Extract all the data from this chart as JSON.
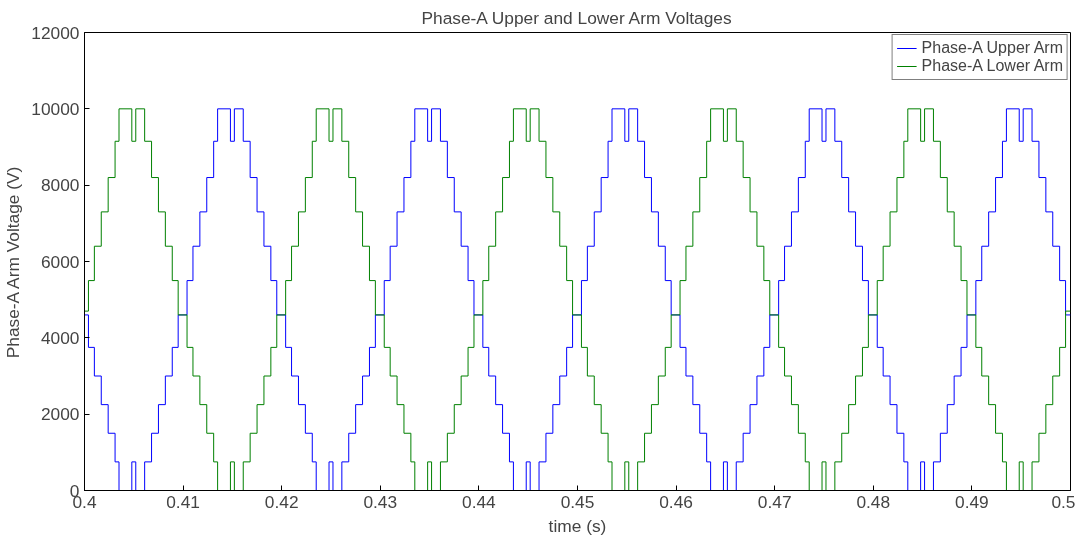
{
  "chart_data": {
    "type": "step",
    "title": "Phase-A Upper and Lower Arm Voltages",
    "xlabel": "time (s)",
    "ylabel": "Phase-A Arm Voltage (V)",
    "x": [
      0.4,
      0.4004,
      0.401,
      0.4017,
      0.4024,
      0.4031,
      0.4035,
      0.4048,
      0.4052,
      0.4061,
      0.4068,
      0.4075,
      0.4082,
      0.4089,
      0.4095,
      0.4104,
      0.411,
      0.4117,
      0.4124,
      0.4131,
      0.4135,
      0.4148,
      0.4152,
      0.4161,
      0.4168,
      0.4175,
      0.4182,
      0.4189,
      0.4195,
      0.4204,
      0.421,
      0.4217,
      0.4224,
      0.4231,
      0.4235,
      0.4248,
      0.4252,
      0.4261,
      0.4268,
      0.4275,
      0.4282,
      0.4289,
      0.4295,
      0.4304,
      0.431,
      0.4317,
      0.4324,
      0.4331,
      0.4335,
      0.4348,
      0.4352,
      0.4361,
      0.4368,
      0.4375,
      0.4382,
      0.4389,
      0.4395,
      0.4404,
      0.441,
      0.4417,
      0.4424,
      0.4431,
      0.4435,
      0.4448,
      0.4452,
      0.4461,
      0.4468,
      0.4475,
      0.4482,
      0.4489,
      0.4495,
      0.4504,
      0.451,
      0.4517,
      0.4524,
      0.4531,
      0.4535,
      0.4548,
      0.4552,
      0.4561,
      0.4568,
      0.4575,
      0.4582,
      0.4589,
      0.4595,
      0.4604,
      0.461,
      0.4617,
      0.4624,
      0.4631,
      0.4635,
      0.4648,
      0.4652,
      0.4661,
      0.4668,
      0.4675,
      0.4682,
      0.4689,
      0.4695,
      0.4704,
      0.471,
      0.4717,
      0.4724,
      0.4731,
      0.4735,
      0.4748,
      0.4752,
      0.4761,
      0.4768,
      0.4775,
      0.4782,
      0.4789,
      0.4795,
      0.4804,
      0.481,
      0.4817,
      0.4824,
      0.4831,
      0.4835,
      0.4848,
      0.4852,
      0.4861,
      0.4868,
      0.4875,
      0.4882,
      0.4889,
      0.4895,
      0.4904,
      0.491,
      0.4917,
      0.4924,
      0.4931,
      0.4935,
      0.4948,
      0.4952,
      0.4961,
      0.4968,
      0.4975,
      0.4982,
      0.4989,
      0.4995,
      0.5
    ],
    "series": [
      {
        "name": "Phase-A Upper Arm",
        "color": "#0000ff",
        "values": [
          4600,
          3750,
          3000,
          2250,
          1500,
          750,
          0,
          750,
          0,
          750,
          1500,
          2250,
          3000,
          3750,
          4600,
          5500,
          6400,
          7300,
          8200,
          9150,
          10000,
          9150,
          10000,
          9150,
          8200,
          7300,
          6400,
          5500,
          4600,
          3750,
          3000,
          2250,
          1500,
          750,
          0,
          750,
          0,
          750,
          1500,
          2250,
          3000,
          3750,
          4600,
          5500,
          6400,
          7300,
          8200,
          9150,
          10000,
          9150,
          10000,
          9150,
          8200,
          7300,
          6400,
          5500,
          4600,
          3750,
          3000,
          2250,
          1500,
          750,
          0,
          750,
          0,
          750,
          1500,
          2250,
          3000,
          3750,
          4600,
          5500,
          6400,
          7300,
          8200,
          9150,
          10000,
          9150,
          10000,
          9150,
          8200,
          7300,
          6400,
          5500,
          4600,
          3750,
          3000,
          2250,
          1500,
          750,
          0,
          750,
          0,
          750,
          1500,
          2250,
          3000,
          3750,
          4600,
          5500,
          6400,
          7300,
          8200,
          9150,
          10000,
          9150,
          10000,
          9150,
          8200,
          7300,
          6400,
          5500,
          4600,
          3750,
          3000,
          2250,
          1500,
          750,
          0,
          750,
          0,
          750,
          1500,
          2250,
          3000,
          3750,
          4600,
          5500,
          6400,
          7300,
          8200,
          9150,
          10000,
          9150,
          10000,
          9150,
          8200,
          7300,
          6400,
          5500,
          4600,
          4600
        ]
      },
      {
        "name": "Phase-A Lower Arm",
        "color": "#008000",
        "values": [
          4700,
          5500,
          6400,
          7300,
          8200,
          9150,
          10000,
          9150,
          10000,
          9150,
          8200,
          7300,
          6400,
          5500,
          4600,
          3750,
          3000,
          2250,
          1500,
          750,
          0,
          750,
          0,
          750,
          1500,
          2250,
          3000,
          3750,
          4600,
          5500,
          6400,
          7300,
          8200,
          9150,
          10000,
          9150,
          10000,
          9150,
          8200,
          7300,
          6400,
          5500,
          4600,
          3750,
          3000,
          2250,
          1500,
          750,
          0,
          750,
          0,
          750,
          1500,
          2250,
          3000,
          3750,
          4600,
          5500,
          6400,
          7300,
          8200,
          9150,
          10000,
          9150,
          10000,
          9150,
          8200,
          7300,
          6400,
          5500,
          4600,
          3750,
          3000,
          2250,
          1500,
          750,
          0,
          750,
          0,
          750,
          1500,
          2250,
          3000,
          3750,
          4600,
          5500,
          6400,
          7300,
          8200,
          9150,
          10000,
          9150,
          10000,
          9150,
          8200,
          7300,
          6400,
          5500,
          4600,
          3750,
          3000,
          2250,
          1500,
          750,
          0,
          750,
          0,
          750,
          1500,
          2250,
          3000,
          3750,
          4600,
          5500,
          6400,
          7300,
          8200,
          9150,
          10000,
          9150,
          10000,
          9150,
          8200,
          7300,
          6400,
          5500,
          4600,
          3750,
          3000,
          2250,
          1500,
          750,
          0,
          750,
          0,
          750,
          1500,
          2250,
          3000,
          3750,
          4700,
          4700
        ]
      }
    ],
    "xlim": [
      0.4,
      0.5
    ],
    "xticks": [
      0.4,
      0.41,
      0.42,
      0.43,
      0.44,
      0.45,
      0.46,
      0.47,
      0.48,
      0.49,
      0.5
    ],
    "ylim": [
      0,
      12000
    ],
    "yticks": [
      0,
      2000,
      4000,
      6000,
      8000,
      10000,
      12000
    ],
    "grid": false,
    "legend": "top right"
  }
}
